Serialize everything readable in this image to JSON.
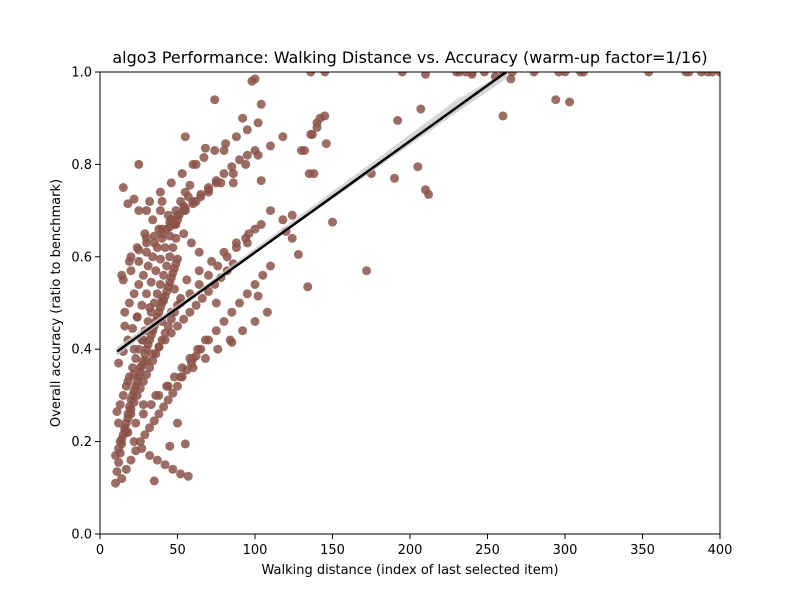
{
  "chart_data": {
    "type": "scatter",
    "title": "algo3 Performance: Walking Distance vs. Accuracy (warm-up factor=1/16)",
    "xlabel": "Walking distance (index of last selected item)",
    "ylabel": "Overall accuracy (ratio to benchmark)",
    "xlim": [
      0,
      400
    ],
    "ylim": [
      0,
      1.0
    ],
    "x_ticks": [
      0,
      50,
      100,
      150,
      200,
      250,
      300,
      350,
      400
    ],
    "x_tick_labels": [
      "0",
      "50",
      "100",
      "150",
      "200",
      "250",
      "300",
      "350",
      "400"
    ],
    "y_ticks": [
      0.0,
      0.2,
      0.4,
      0.6,
      0.8,
      1.0
    ],
    "y_tick_labels": [
      "0.0",
      "0.2",
      "0.4",
      "0.6",
      "0.8",
      "1.0"
    ],
    "grid": false,
    "legend": null,
    "colors": {
      "points": "#8b5349",
      "regression_line": "#000000",
      "confidence_band": "#c8c8c8"
    },
    "regression": {
      "x": [
        11,
        262
      ],
      "y": [
        0.395,
        1.0
      ]
    },
    "confidence_band": {
      "x": [
        11,
        60,
        120,
        180,
        230,
        262
      ],
      "upper": [
        0.405,
        0.52,
        0.668,
        0.815,
        0.94,
        1.0
      ],
      "lower": [
        0.385,
        0.51,
        0.655,
        0.795,
        0.912,
        0.985
      ]
    },
    "points": {
      "x": [
        10,
        11,
        12,
        13,
        14,
        15,
        16,
        17,
        18,
        19,
        20,
        21,
        22,
        23,
        24,
        25,
        26,
        27,
        28,
        29,
        30,
        31,
        32,
        33,
        34,
        35,
        36,
        37,
        38,
        39,
        40,
        41,
        42,
        43,
        44,
        45,
        46,
        47,
        48,
        49,
        50,
        10,
        12,
        14,
        16,
        18,
        20,
        22,
        24,
        26,
        28,
        30,
        32,
        34,
        36,
        38,
        40,
        42,
        44,
        46,
        48,
        50,
        52,
        11,
        13,
        15,
        17,
        19,
        21,
        23,
        25,
        27,
        29,
        31,
        33,
        35,
        37,
        39,
        41,
        43,
        45,
        47,
        49,
        12,
        15,
        18,
        21,
        24,
        27,
        30,
        33,
        36,
        39,
        42,
        45,
        48,
        51,
        54,
        57,
        14,
        17,
        20,
        23,
        26,
        29,
        32,
        35,
        38,
        41,
        44,
        47,
        50,
        53,
        56,
        59,
        62,
        16,
        19,
        22,
        25,
        28,
        31,
        34,
        37,
        40,
        43,
        46,
        49,
        52,
        55,
        58,
        13,
        18,
        23,
        28,
        33,
        38,
        43,
        48,
        53,
        58,
        63,
        68,
        15,
        20,
        25,
        30,
        35,
        40,
        45,
        50,
        55,
        60,
        65,
        70,
        75,
        18,
        22,
        26,
        30,
        34,
        38,
        42,
        46,
        50,
        54,
        58,
        62,
        66,
        70,
        74,
        78,
        82,
        86,
        20,
        25,
        30,
        35,
        40,
        45,
        50,
        55,
        60,
        65,
        70,
        75,
        80,
        85,
        90,
        95,
        100,
        22,
        28,
        34,
        40,
        46,
        52,
        58,
        64,
        70,
        76,
        82,
        88,
        94,
        100,
        25,
        32,
        39,
        46,
        53,
        60,
        67,
        74,
        81,
        88,
        95,
        102,
        16,
        24,
        32,
        40,
        48,
        56,
        64,
        72,
        80,
        88,
        96,
        104,
        12,
        17,
        22,
        27,
        32,
        37,
        42,
        47,
        52,
        57,
        14,
        19,
        24,
        29,
        34,
        39,
        44,
        49,
        54,
        59,
        64,
        60,
        65,
        70,
        75,
        80,
        85,
        90,
        95,
        100,
        105,
        110,
        55,
        62,
        68,
        74,
        80,
        86,
        92,
        98,
        104,
        20,
        28,
        36,
        44,
        52,
        60,
        68,
        76,
        84,
        92,
        100,
        108,
        30,
        38,
        46,
        54,
        62,
        70,
        78,
        86,
        94,
        102,
        110,
        118,
        110,
        118,
        124,
        128,
        132,
        136,
        140,
        146,
        150,
        120,
        124,
        130,
        134,
        138,
        142,
        172,
        175,
        190,
        192,
        205,
        207,
        210,
        212,
        75,
        85,
        95,
        100,
        102,
        104,
        135,
        137,
        140,
        145,
        210,
        240,
        255,
        260,
        265,
        303,
        136,
        145,
        195,
        230,
        232,
        236,
        240,
        248,
        260,
        266,
        280,
        294,
        296,
        300,
        310,
        312,
        354,
        378,
        380,
        388,
        392,
        395,
        400,
        35,
        45,
        55,
        30,
        40,
        50,
        25,
        15,
        18,
        22
      ],
      "y": [
        0.11,
        0.135,
        0.155,
        0.175,
        0.195,
        0.215,
        0.225,
        0.24,
        0.26,
        0.275,
        0.29,
        0.3,
        0.31,
        0.32,
        0.33,
        0.34,
        0.35,
        0.365,
        0.375,
        0.39,
        0.4,
        0.41,
        0.42,
        0.43,
        0.44,
        0.45,
        0.46,
        0.47,
        0.48,
        0.49,
        0.5,
        0.505,
        0.515,
        0.525,
        0.535,
        0.545,
        0.555,
        0.565,
        0.575,
        0.585,
        0.595,
        0.17,
        0.185,
        0.205,
        0.23,
        0.25,
        0.27,
        0.285,
        0.3,
        0.315,
        0.33,
        0.345,
        0.36,
        0.375,
        0.39,
        0.405,
        0.42,
        0.435,
        0.45,
        0.465,
        0.48,
        0.495,
        0.51,
        0.265,
        0.28,
        0.3,
        0.32,
        0.34,
        0.36,
        0.38,
        0.4,
        0.42,
        0.44,
        0.46,
        0.48,
        0.5,
        0.52,
        0.54,
        0.56,
        0.58,
        0.6,
        0.62,
        0.64,
        0.37,
        0.395,
        0.42,
        0.445,
        0.47,
        0.495,
        0.52,
        0.545,
        0.57,
        0.595,
        0.62,
        0.645,
        0.67,
        0.69,
        0.71,
        0.73,
        0.12,
        0.14,
        0.16,
        0.18,
        0.2,
        0.215,
        0.23,
        0.245,
        0.26,
        0.275,
        0.29,
        0.305,
        0.32,
        0.34,
        0.355,
        0.37,
        0.385,
        0.48,
        0.5,
        0.52,
        0.54,
        0.56,
        0.58,
        0.6,
        0.62,
        0.64,
        0.66,
        0.68,
        0.7,
        0.72,
        0.74,
        0.755,
        0.2,
        0.22,
        0.24,
        0.26,
        0.28,
        0.3,
        0.32,
        0.34,
        0.36,
        0.38,
        0.4,
        0.42,
        0.55,
        0.57,
        0.59,
        0.61,
        0.63,
        0.65,
        0.665,
        0.68,
        0.7,
        0.715,
        0.73,
        0.745,
        0.76,
        0.33,
        0.345,
        0.36,
        0.375,
        0.39,
        0.405,
        0.42,
        0.435,
        0.45,
        0.465,
        0.48,
        0.495,
        0.51,
        0.525,
        0.54,
        0.555,
        0.57,
        0.585,
        0.6,
        0.615,
        0.63,
        0.645,
        0.66,
        0.675,
        0.69,
        0.705,
        0.72,
        0.735,
        0.75,
        0.765,
        0.78,
        0.795,
        0.81,
        0.82,
        0.83,
        0.4,
        0.42,
        0.44,
        0.46,
        0.48,
        0.5,
        0.52,
        0.54,
        0.56,
        0.58,
        0.6,
        0.62,
        0.64,
        0.66,
        0.7,
        0.72,
        0.74,
        0.76,
        0.78,
        0.8,
        0.815,
        0.83,
        0.845,
        0.86,
        0.875,
        0.89,
        0.45,
        0.47,
        0.49,
        0.51,
        0.53,
        0.55,
        0.57,
        0.59,
        0.61,
        0.63,
        0.65,
        0.67,
        0.24,
        0.22,
        0.2,
        0.185,
        0.17,
        0.16,
        0.15,
        0.14,
        0.13,
        0.125,
        0.56,
        0.59,
        0.62,
        0.65,
        0.68,
        0.7,
        0.69,
        0.67,
        0.65,
        0.63,
        0.61,
        0.38,
        0.4,
        0.42,
        0.44,
        0.46,
        0.48,
        0.5,
        0.52,
        0.54,
        0.56,
        0.58,
        0.86,
        0.8,
        0.835,
        0.94,
        0.83,
        0.76,
        0.9,
        0.98,
        0.93,
        0.26,
        0.28,
        0.3,
        0.32,
        0.34,
        0.36,
        0.38,
        0.4,
        0.42,
        0.44,
        0.46,
        0.48,
        0.64,
        0.66,
        0.68,
        0.7,
        0.72,
        0.74,
        0.76,
        0.78,
        0.8,
        0.82,
        0.84,
        0.86,
        0.7,
        0.68,
        0.64,
        0.605,
        0.83,
        0.865,
        0.88,
        0.845,
        0.675,
        0.655,
        0.69,
        0.83,
        0.535,
        0.78,
        0.9,
        0.57,
        0.78,
        0.77,
        0.895,
        0.795,
        0.92,
        0.745,
        0.735,
        0.5,
        0.415,
        0.63,
        0.985,
        0.515,
        0.765,
        0.78,
        0.865,
        0.89,
        0.905,
        0.995,
        0.995,
        0.99,
        0.905,
        0.985,
        0.935,
        1.0,
        1.0,
        1.0,
        1.0,
        1.0,
        1.0,
        1.0,
        1.0,
        1.0,
        1.0,
        1.0,
        0.94,
        1.0,
        1.0,
        1.0,
        1.0,
        1.0,
        1.0,
        1.0,
        1.0,
        1.0,
        1.0,
        1.0,
        0.115,
        0.19,
        0.195,
        0.7,
        0.72,
        0.24,
        0.8,
        0.75,
        0.715,
        0.725
      ]
    }
  }
}
